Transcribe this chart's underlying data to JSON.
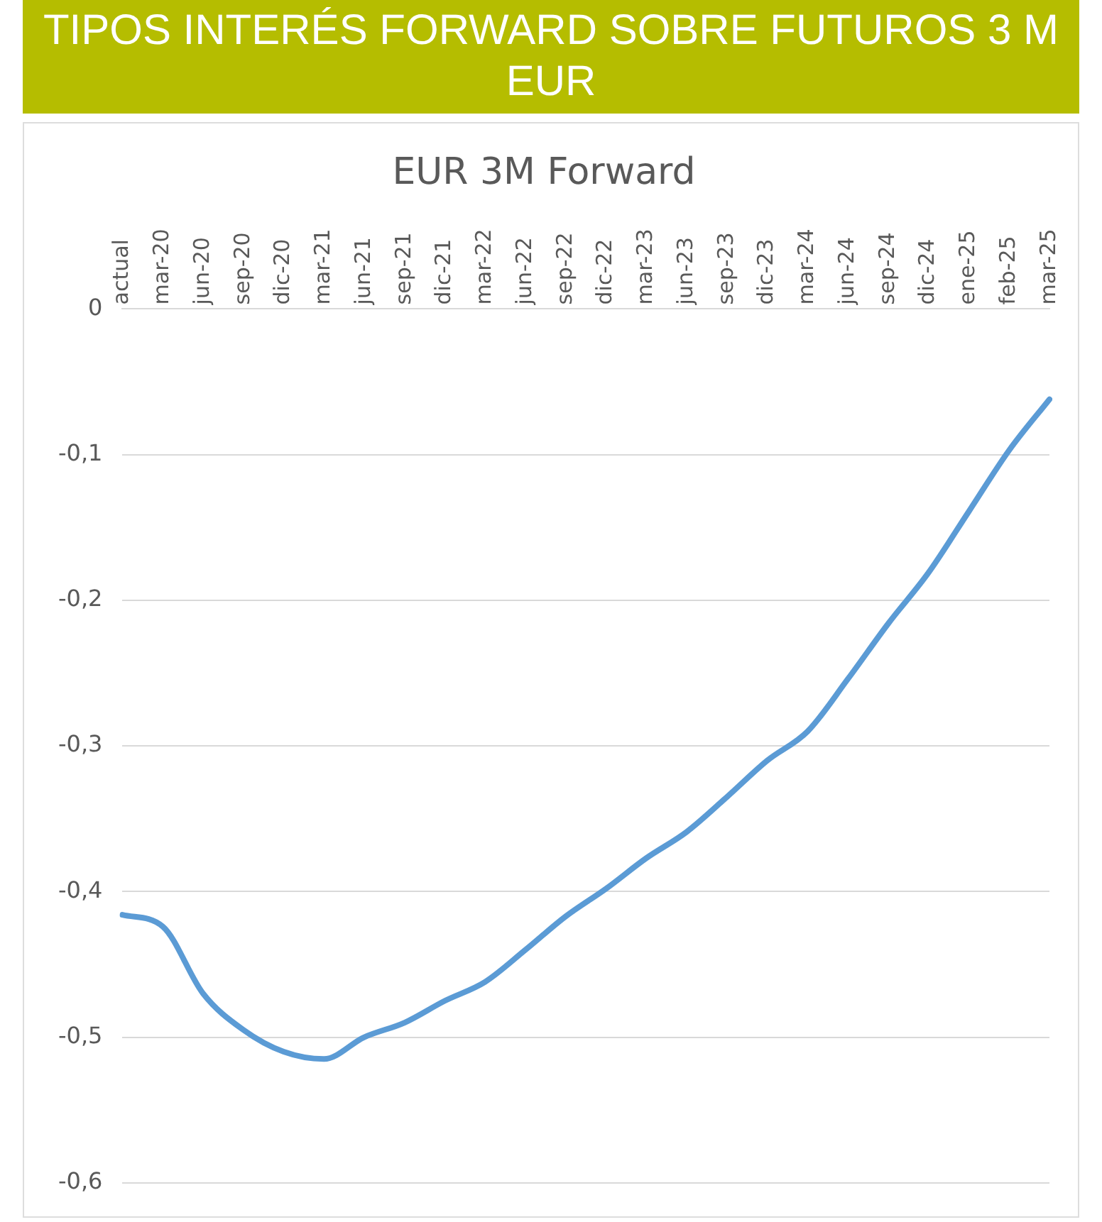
{
  "chart_data": {
    "type": "line",
    "title": "TIPOS INTERÉS FORWARD  SOBRE FUTUROS 3 M EUR",
    "subtitle": "EUR 3M Forward",
    "categories": [
      "actual",
      "mar-20",
      "jun-20",
      "sep-20",
      "dic-20",
      "mar-21",
      "jun-21",
      "sep-21",
      "dic-21",
      "mar-22",
      "jun-22",
      "sep-22",
      "dic-22",
      "mar-23",
      "jun-23",
      "sep-23",
      "dic-23",
      "mar-24",
      "jun-24",
      "sep-24",
      "dic-24",
      "ene-25",
      "feb-25",
      "mar-25"
    ],
    "series": [
      {
        "color": "#5b9bd5",
        "values": [
          -0.416,
          -0.424,
          -0.47,
          -0.495,
          -0.51,
          -0.515,
          -0.5,
          -0.49,
          -0.475,
          -0.462,
          -0.44,
          -0.417,
          -0.398,
          -0.377,
          -0.359,
          -0.335,
          -0.31,
          -0.29,
          -0.254,
          -0.216,
          -0.181,
          -0.139,
          -0.097,
          -0.062
        ]
      }
    ],
    "ylim": [
      -0.6,
      0
    ],
    "yticks": [
      0,
      {
        "value": -0.1,
        "label": "-0,1"
      },
      {
        "value": -0.2,
        "label": "-0,2"
      },
      {
        "value": -0.3,
        "label": "-0,3"
      },
      {
        "value": -0.4,
        "label": "-0,4"
      },
      {
        "value": -0.5,
        "label": "-0,5"
      },
      {
        "value": -0.6,
        "label": "-0,6"
      }
    ],
    "grid": "y",
    "legend": false,
    "marker": "none",
    "line_style": "solid"
  }
}
